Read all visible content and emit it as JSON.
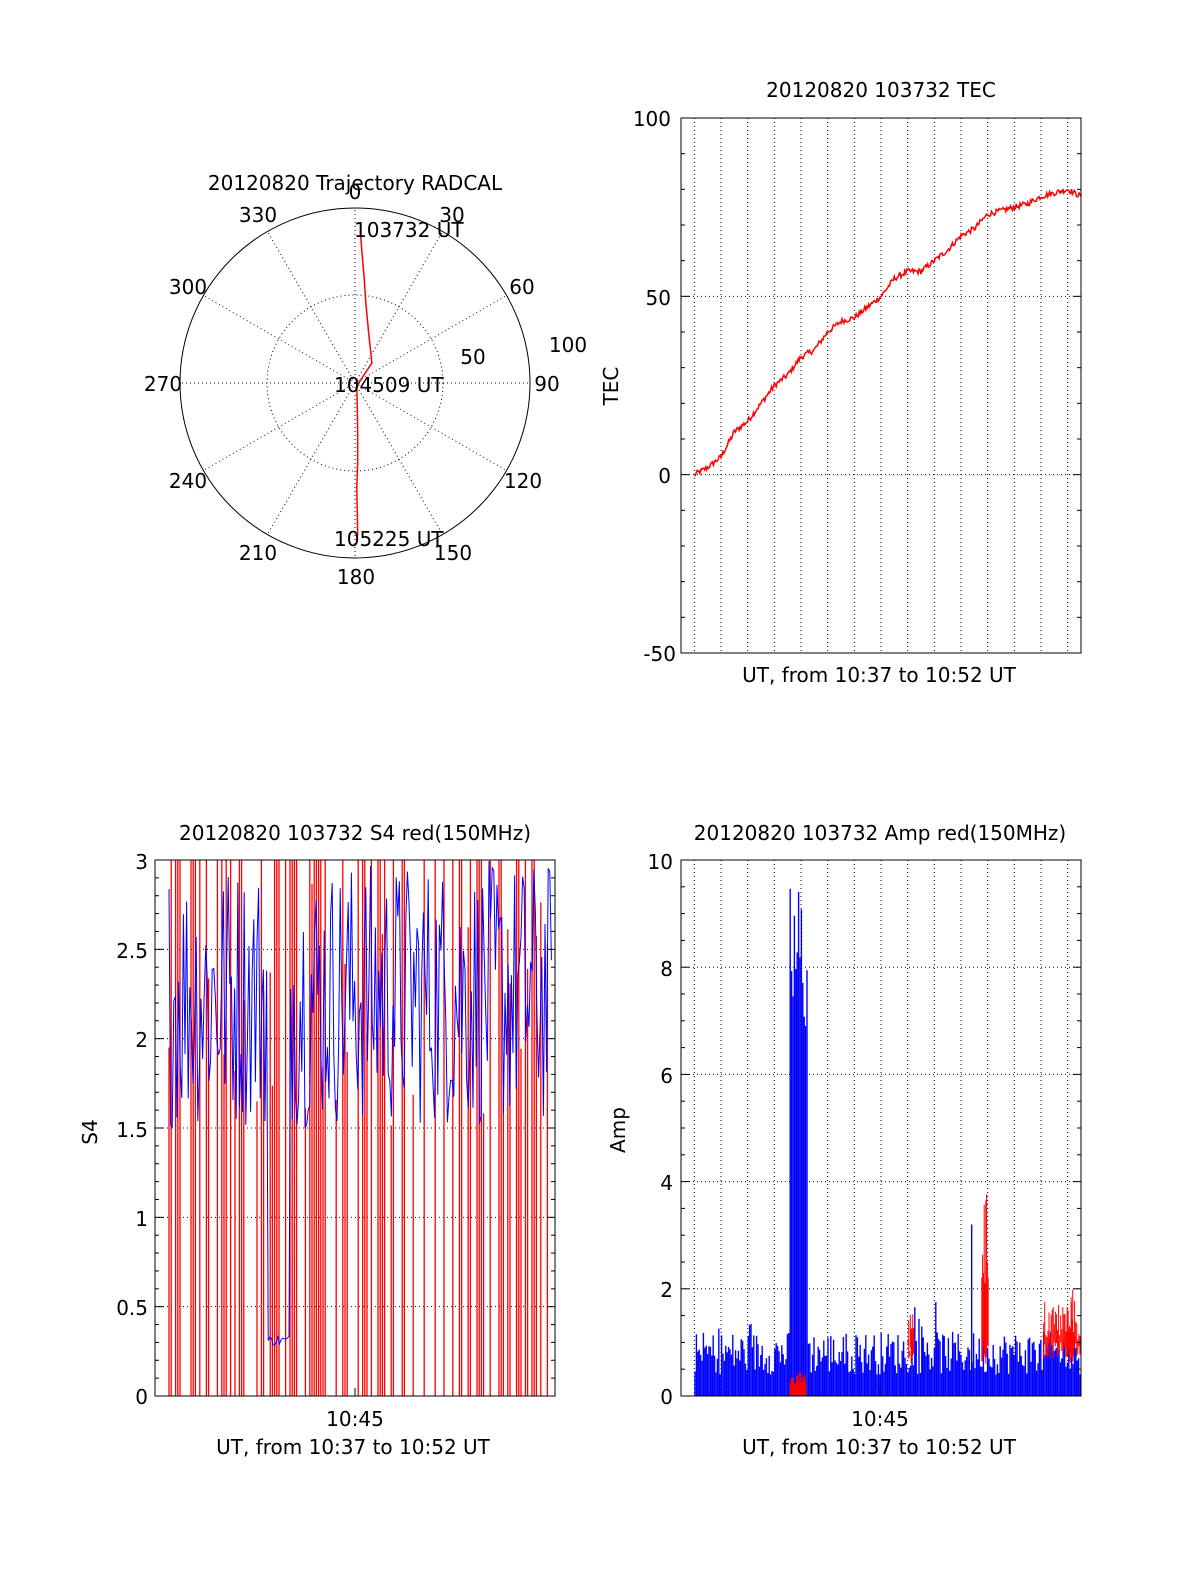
{
  "colors": {
    "red": "#ff0000",
    "blue": "#0000ff",
    "axis": "#000000"
  },
  "chart_data": [
    {
      "type": "polar",
      "title": "20120820 Trajectory RADCAL",
      "azimuth_labels": [
        "0",
        "30",
        "60",
        "90",
        "120",
        "150",
        "180",
        "210",
        "240",
        "270",
        "300",
        "330"
      ],
      "radius_labels": [
        "50",
        "100"
      ],
      "series": [
        {
          "color": "red",
          "points": [
            {
              "az": 2,
              "r": 87
            },
            {
              "az": 3,
              "r": 75
            },
            {
              "az": 5,
              "r": 60
            },
            {
              "az": 8,
              "r": 45
            },
            {
              "az": 15,
              "r": 30
            },
            {
              "az": 40,
              "r": 15
            },
            {
              "az": 150,
              "r": 2
            },
            {
              "az": 175,
              "r": 15
            },
            {
              "az": 177,
              "r": 30
            },
            {
              "az": 178,
              "r": 45
            },
            {
              "az": 179,
              "r": 60
            },
            {
              "az": 179,
              "r": 75
            },
            {
              "az": 179,
              "r": 87
            }
          ]
        }
      ],
      "annotations": [
        "103732 UT",
        "104509 UT",
        "105225 UT"
      ]
    },
    {
      "type": "line",
      "title": "20120820 103732 TEC",
      "xlabel": "UT, from 10:37 to 10:52 UT",
      "ylabel": "TEC",
      "ylim": [
        -50,
        100
      ],
      "yticks": [
        "100",
        "50",
        "0",
        "-50"
      ],
      "xlim_min": [
        0,
        15
      ],
      "x_gridlines_min": [
        0.5,
        1.5,
        2.5,
        3.5,
        4.5,
        5.5,
        6.5,
        7.5,
        8.5,
        9.5,
        10.5,
        11.5,
        12.5,
        13.5,
        14.5
      ],
      "series": [
        {
          "color": "red",
          "x_min": [
            0.5,
            1.0,
            1.5,
            2.0,
            2.5,
            3.0,
            3.5,
            4.0,
            4.5,
            5.0,
            5.5,
            6.0,
            6.5,
            7.0,
            7.5,
            8.0,
            8.5,
            9.0,
            9.5,
            10.0,
            10.5,
            11.0,
            11.5,
            12.0,
            12.5,
            13.0,
            13.5,
            14.0,
            14.5,
            15.0
          ],
          "values": [
            0,
            2,
            5,
            12,
            15,
            20,
            25,
            28,
            33,
            35,
            40,
            43,
            44,
            47,
            50,
            55,
            57,
            57,
            60,
            63,
            67,
            69,
            73,
            74,
            75,
            76,
            78,
            79,
            80,
            78
          ]
        }
      ]
    },
    {
      "type": "line",
      "title": "20120820 103732 S4 red(150MHz)",
      "xlabel": "UT, from 10:37 to 10:52 UT",
      "ylabel": "S4",
      "ylim": [
        0,
        3
      ],
      "yticks": [
        "3",
        "2.5",
        "2",
        "1.5",
        "1",
        "0.5",
        "0"
      ],
      "xtick_label": "10:45",
      "xlim_min": [
        0,
        15
      ],
      "series": [
        {
          "color": "red",
          "description": "dense vertical oscillation between 0 and 3 across the full time span"
        },
        {
          "color": "blue",
          "description": "dense oscillation mostly between 1.5 and 3, with a short segment near 0.3 around 10:41"
        }
      ]
    },
    {
      "type": "line",
      "title": "20120820 103732 Amp red(150MHz)",
      "xlabel": "UT, from 10:37 to 10:52 UT",
      "ylabel": "Amp",
      "ylim": [
        0,
        10
      ],
      "yticks": [
        "10",
        "8",
        "6",
        "4",
        "2",
        "0"
      ],
      "xtick_label": "10:45",
      "xlim_min": [
        0,
        15
      ],
      "series": [
        {
          "color": "blue",
          "peaks": [
            {
              "x_min": 4.4,
              "value": 9.8
            },
            {
              "x_min": 10.9,
              "value": 3.2
            }
          ],
          "baseline_range": [
            0,
            1.2
          ]
        },
        {
          "color": "red",
          "peaks": [
            {
              "x_min": 11.4,
              "value": 3.8
            },
            {
              "x_min": 14.6,
              "value": 2.1
            },
            {
              "x_min": 8.6,
              "value": 1.6
            }
          ]
        }
      ]
    }
  ]
}
